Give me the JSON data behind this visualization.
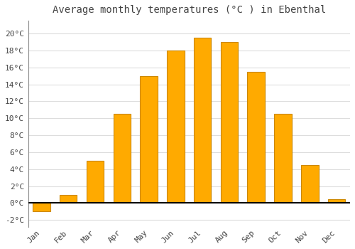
{
  "months": [
    "Jan",
    "Feb",
    "Mar",
    "Apr",
    "May",
    "Jun",
    "Jul",
    "Aug",
    "Sep",
    "Oct",
    "Nov",
    "Dec"
  ],
  "temperatures": [
    -1.0,
    1.0,
    5.0,
    10.5,
    15.0,
    18.0,
    19.5,
    19.0,
    15.5,
    10.5,
    4.5,
    0.5
  ],
  "bar_color": "#FFAA00",
  "bar_edge_color": "#CC8800",
  "title": "Average monthly temperatures (°C ) in Ebenthal",
  "title_fontsize": 10,
  "ylim": [
    -2.8,
    21.5
  ],
  "yticks": [
    -2,
    0,
    2,
    4,
    6,
    8,
    10,
    12,
    14,
    16,
    18,
    20
  ],
  "background_color": "#ffffff",
  "plot_background_color": "#ffffff",
  "grid_color": "#dddddd",
  "font_color": "#444444",
  "tick_label_fontsize": 8,
  "zero_line_color": "#000000",
  "bar_width": 0.65
}
